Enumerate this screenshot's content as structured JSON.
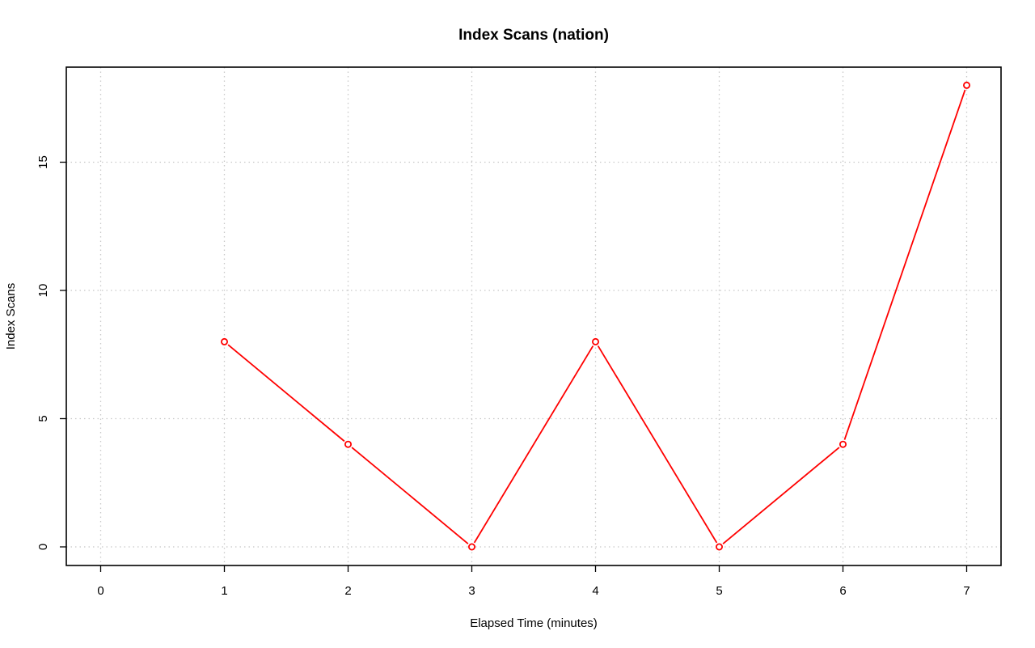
{
  "chart_data": {
    "type": "line",
    "title": "Index Scans (nation)",
    "xlabel": "Elapsed Time (minutes)",
    "ylabel": "Index Scans",
    "xlim": [
      0,
      7
    ],
    "ylim": [
      0,
      18
    ],
    "x_ticks": [
      0,
      1,
      2,
      3,
      4,
      5,
      6,
      7
    ],
    "y_ticks": [
      0,
      5,
      10,
      15
    ],
    "grid": true,
    "series": [
      {
        "x": [
          1,
          2,
          3,
          4,
          5,
          6,
          7
        ],
        "y": [
          8,
          4,
          0,
          8,
          0,
          4,
          18
        ],
        "color": "#ff0000",
        "marker": "open-circle"
      }
    ]
  }
}
